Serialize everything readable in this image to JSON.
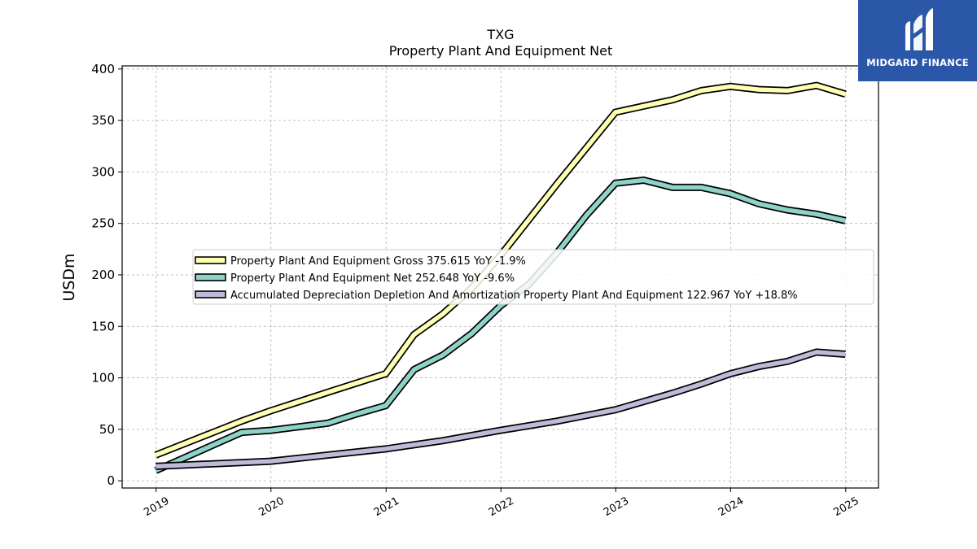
{
  "chart_data": {
    "type": "line",
    "title": "TXG",
    "subtitle": "Property Plant And Equipment Net",
    "xlabel": "",
    "ylabel": "USDm",
    "xlim": [
      "2018-09-15",
      "2025-04-15"
    ],
    "ylim": [
      -7,
      403
    ],
    "yticks": [
      0,
      50,
      100,
      150,
      200,
      250,
      300,
      350,
      400
    ],
    "xticks": [
      "2019",
      "2020",
      "2021",
      "2022",
      "2023",
      "2024",
      "2025"
    ],
    "grid": true,
    "legend_position": "center",
    "series": [
      {
        "name": "Property Plant And Equipment Gross",
        "legend_label": "Property Plant And Equipment Gross  375.615 YoY -1.9%",
        "color": "#ffffb3",
        "points": [
          [
            "2018-12-31",
            25
          ],
          [
            "2019-09-30",
            58
          ],
          [
            "2019-12-31",
            68
          ],
          [
            "2020-06-30",
            86
          ],
          [
            "2020-12-31",
            104
          ],
          [
            "2021-03-31",
            142
          ],
          [
            "2021-06-30",
            162
          ],
          [
            "2021-09-30",
            187
          ],
          [
            "2021-12-31",
            219
          ],
          [
            "2022-06-30",
            289
          ],
          [
            "2022-12-31",
            358
          ],
          [
            "2023-03-31",
            364
          ],
          [
            "2023-06-30",
            370
          ],
          [
            "2023-09-30",
            379
          ],
          [
            "2023-12-31",
            383
          ],
          [
            "2024-03-31",
            380
          ],
          [
            "2024-06-30",
            379
          ],
          [
            "2024-09-30",
            384
          ],
          [
            "2024-12-31",
            375.615
          ]
        ]
      },
      {
        "name": "Property Plant And Equipment Net",
        "legend_label": "Property Plant And Equipment Net  252.648 YoY -9.6%",
        "color": "#8dd3c7",
        "points": [
          [
            "2018-12-31",
            10
          ],
          [
            "2019-09-30",
            47
          ],
          [
            "2019-12-31",
            49
          ],
          [
            "2020-06-30",
            56
          ],
          [
            "2020-09-30",
            65
          ],
          [
            "2020-12-31",
            73
          ],
          [
            "2021-03-31",
            108
          ],
          [
            "2021-06-30",
            122
          ],
          [
            "2021-09-30",
            143
          ],
          [
            "2021-12-31",
            170
          ],
          [
            "2022-03-31",
            191
          ],
          [
            "2022-06-30",
            222
          ],
          [
            "2022-09-30",
            258
          ],
          [
            "2022-12-31",
            289
          ],
          [
            "2023-03-31",
            292
          ],
          [
            "2023-06-30",
            285
          ],
          [
            "2023-09-30",
            285
          ],
          [
            "2023-12-31",
            279
          ],
          [
            "2024-03-31",
            269
          ],
          [
            "2024-06-30",
            263
          ],
          [
            "2024-09-30",
            259
          ],
          [
            "2024-12-31",
            252.648
          ]
        ]
      },
      {
        "name": "Accumulated Depreciation Depletion And Amortization Property Plant And Equipment",
        "legend_label": "Accumulated Depreciation Depletion And Amortization Property Plant And Equipment  122.967 YoY +18.8%",
        "color": "#bebada",
        "points": [
          [
            "2018-12-31",
            14
          ],
          [
            "2019-12-31",
            19
          ],
          [
            "2020-06-30",
            25
          ],
          [
            "2020-12-31",
            31
          ],
          [
            "2021-06-30",
            39
          ],
          [
            "2021-09-30",
            44
          ],
          [
            "2021-12-31",
            49
          ],
          [
            "2022-06-30",
            58
          ],
          [
            "2022-12-31",
            69
          ],
          [
            "2023-06-30",
            85
          ],
          [
            "2023-09-30",
            94
          ],
          [
            "2023-12-31",
            104
          ],
          [
            "2024-03-31",
            111
          ],
          [
            "2024-06-30",
            116
          ],
          [
            "2024-09-30",
            125
          ],
          [
            "2024-12-31",
            122.967
          ]
        ]
      }
    ]
  },
  "logo": {
    "text": "MIDGARD FINANCE",
    "background": "#2b57a8",
    "icon": "midgard-logo-icon"
  }
}
